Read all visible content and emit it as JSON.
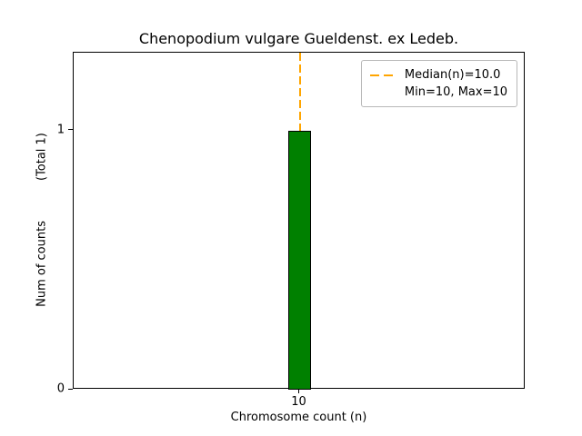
{
  "chart": {
    "title": "Chenopodium vulgare Gueldenst. ex Ledeb.",
    "xlabel": "Chromosome count (n)",
    "ylabel": "Num of counts",
    "ylabel_total": "(Total 1)",
    "legend": {
      "median_label": "Median(n)=10.0",
      "minmax_label": "Min=10, Max=10"
    }
  },
  "chart_data": {
    "type": "bar",
    "title": "Chenopodium vulgare Gueldenst. ex Ledeb.",
    "xlabel": "Chromosome count (n)",
    "ylabel": "Num of counts (Total 1)",
    "x": [
      10
    ],
    "counts": [
      1
    ],
    "total_counts": 1,
    "bar_width": 1,
    "median_n": 10.0,
    "min_n": 10,
    "max_n": 10,
    "xlim": [
      0,
      20
    ],
    "ylim": [
      0,
      1.3
    ],
    "xtick_values": [
      10
    ],
    "xtick_labels": [
      "10"
    ],
    "ytick_values": [
      0,
      1
    ],
    "ytick_labels": [
      "0",
      "1"
    ],
    "grid": false,
    "legend_position": "upper right",
    "legend_entries": [
      "Median(n)=10.0",
      "Min=10, Max=10"
    ],
    "colors": {
      "bar_fill": "#008000",
      "bar_edge": "#000000",
      "median_line": "#FFA500"
    }
  }
}
